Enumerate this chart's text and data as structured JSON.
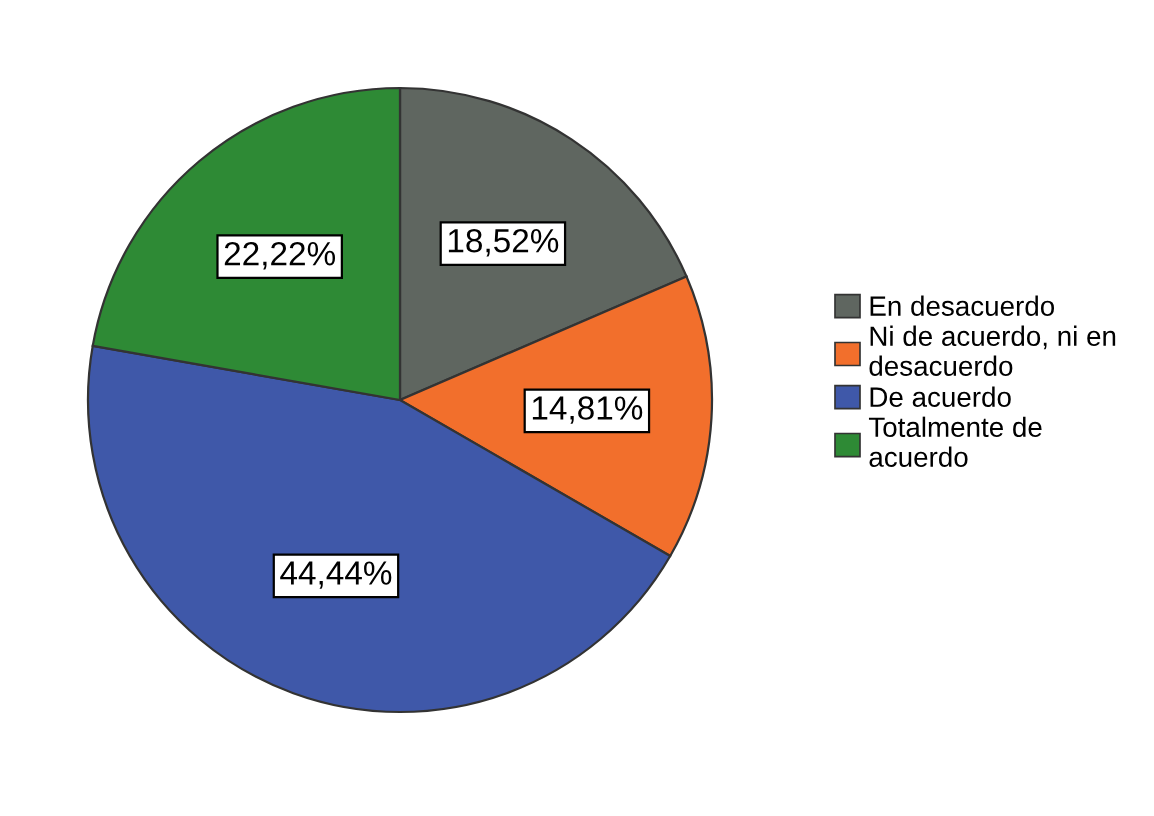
{
  "chart_data": {
    "type": "pie",
    "categories": [
      "En desacuerdo",
      "Ni de acuerdo, ni en\ndesacuerdo",
      "De acuerdo",
      "Totalmente de\nacuerdo"
    ],
    "values": [
      18.52,
      14.81,
      44.44,
      22.22
    ],
    "colors": [
      "#5f6660",
      "#f26f2c",
      "#3f58a9",
      "#2e8a35"
    ],
    "value_labels": [
      "18,52%",
      "14,81%",
      "44,44%",
      "22,22%"
    ],
    "legend": "right"
  }
}
